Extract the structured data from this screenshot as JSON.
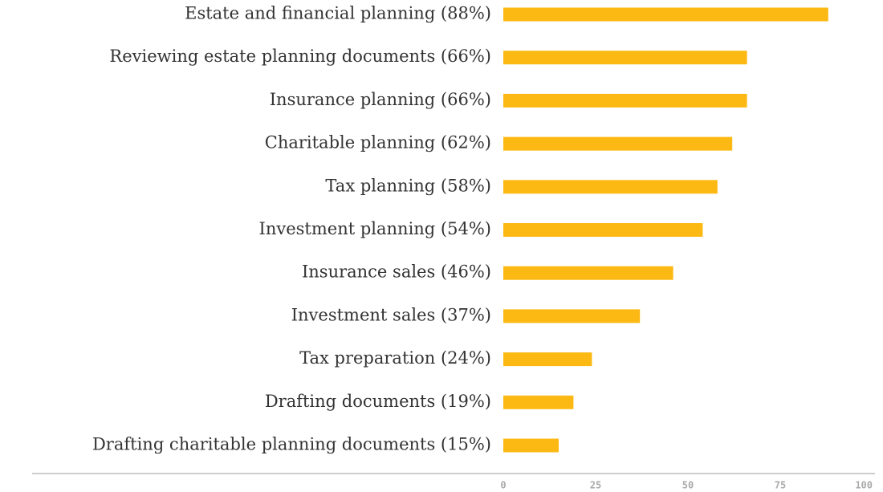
{
  "chart_data": {
    "type": "bar",
    "orientation": "horizontal",
    "categories": [
      "Estate and financial planning (88%)",
      "Reviewing estate planning documents (66%)",
      "Insurance planning (66%)",
      "Charitable planning (62%)",
      "Tax planning (58%)",
      "Investment planning (54%)",
      "Insurance sales (46%)",
      "Investment sales (37%)",
      "Tax preparation (24%)",
      "Drafting documents (19%)",
      "Drafting charitable planning documents (15%)"
    ],
    "values": [
      88,
      66,
      66,
      62,
      58,
      54,
      46,
      37,
      24,
      19,
      15
    ],
    "color": "#fdb913",
    "xlim": [
      0,
      100
    ],
    "xticks": [
      0,
      25,
      50,
      75,
      100
    ],
    "grid": false
  }
}
